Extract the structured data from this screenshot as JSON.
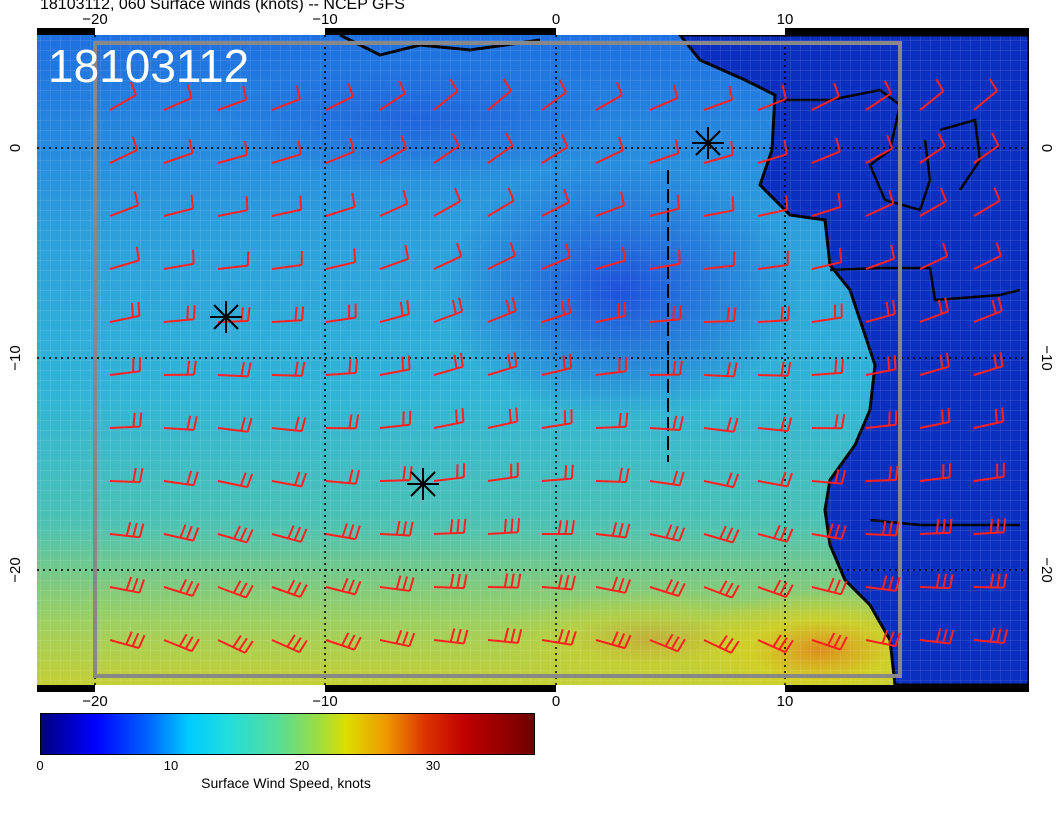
{
  "title": "18103112, 060 Surface winds (knots) -- NCEP GFS",
  "map_label": "18103112",
  "colors": {
    "ocean_low": "#1a52e0",
    "ocean_mid": "#2aa6d8",
    "ocean_high": "#c8d23a",
    "land": "#0b2fb5",
    "barb": "#ff2020",
    "coast": "#000000"
  },
  "axes": {
    "top_labels": [
      "−20",
      "−10",
      "0",
      "10"
    ],
    "bottom_labels": [
      "−20",
      "−10",
      "0",
      "10"
    ],
    "left_labels": [
      "0",
      "−10",
      "−20"
    ],
    "right_labels": [
      "0",
      "−10",
      "−20"
    ]
  },
  "colorbar": {
    "ticks": [
      "0",
      "10",
      "20",
      "30"
    ],
    "label": "Surface Wind Speed, knots"
  }
}
